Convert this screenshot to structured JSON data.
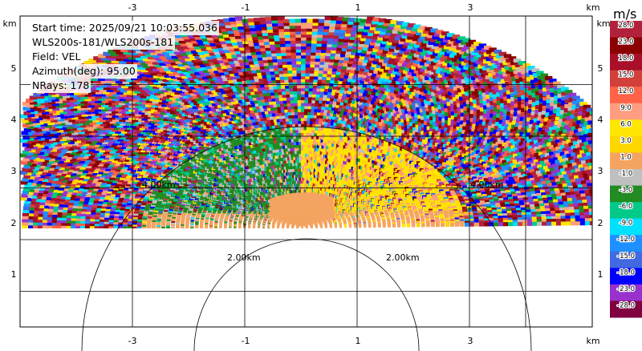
{
  "header": {
    "start_time": "Start time: 2025/09/21 10:03:55.036",
    "instrument": "WLS200s-181/WLS200s-181",
    "field": "Field: VEL",
    "azimuth": "Azimuth(deg): 95.00",
    "nrays": "NRays: 178"
  },
  "axes": {
    "unit": "km",
    "x_ticks": [
      "-3",
      "-1",
      "1",
      "3"
    ],
    "y_ticks": [
      "1",
      "2",
      "3",
      "4",
      "5"
    ],
    "range_ring_labels": [
      "2.00km",
      "2.00km",
      "4.00km",
      "4.00km"
    ]
  },
  "colorbar": {
    "unit": "m/s",
    "levels": [
      "28.0",
      "23.0",
      "18.0",
      "15.0",
      "12.0",
      "9.0",
      "6.0",
      "3.0",
      "1.0",
      "-1.0",
      "-3.0",
      "-6.0",
      "-9.0",
      "-12.0",
      "-15.0",
      "-18.0",
      "-23.0",
      "-28.0"
    ],
    "colors": [
      "#b2213c",
      "#8b0000",
      "#a8102a",
      "#d2403c",
      "#ff6347",
      "#ff9d80",
      "#ffe600",
      "#ffd700",
      "#f4a460",
      "#c0c0c0",
      "#228b22",
      "#00c98a",
      "#00e0ff",
      "#1e90ff",
      "#4169e1",
      "#0000ff",
      "#9932cc",
      "#800040"
    ]
  },
  "chart_data": {
    "type": "heatmap",
    "field": "VEL",
    "units": "m/s",
    "xlim": [
      -4.2,
      4.2
    ],
    "ylim": [
      0,
      6
    ],
    "color_range": [
      -28,
      28
    ]
  }
}
